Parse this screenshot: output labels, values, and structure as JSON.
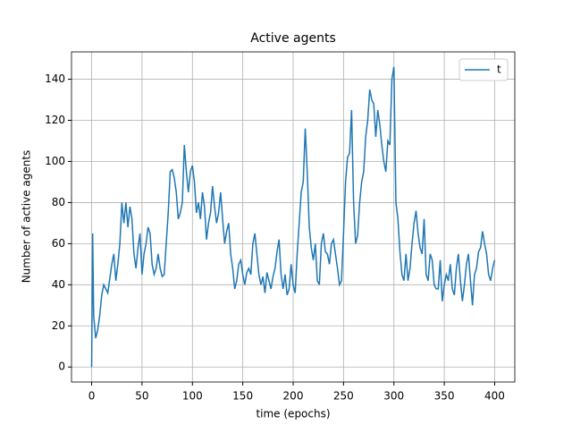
{
  "chart_data": {
    "type": "line",
    "title": "Active agents",
    "x_label": "time (epochs)",
    "y_label": "Number of active agents",
    "x": [
      0,
      1,
      2,
      4,
      6,
      8,
      10,
      12,
      16,
      20,
      22,
      24,
      26,
      28,
      30,
      32,
      34,
      36,
      38,
      40,
      42,
      44,
      46,
      48,
      50,
      52,
      54,
      56,
      58,
      60,
      62,
      64,
      66,
      68,
      70,
      72,
      74,
      76,
      78,
      80,
      82,
      84,
      86,
      88,
      90,
      92,
      94,
      96,
      98,
      100,
      102,
      104,
      106,
      108,
      110,
      112,
      114,
      116,
      118,
      120,
      122,
      124,
      126,
      128,
      130,
      132,
      134,
      136,
      138,
      140,
      142,
      144,
      146,
      148,
      150,
      152,
      154,
      156,
      158,
      160,
      162,
      164,
      166,
      168,
      170,
      172,
      174,
      176,
      178,
      180,
      182,
      184,
      186,
      188,
      190,
      192,
      194,
      196,
      198,
      200,
      202,
      204,
      206,
      208,
      210,
      212,
      214,
      216,
      218,
      220,
      222,
      224,
      226,
      228,
      230,
      232,
      234,
      236,
      238,
      240,
      242,
      244,
      246,
      248,
      250,
      252,
      254,
      256,
      258,
      260,
      262,
      264,
      266,
      268,
      270,
      272,
      274,
      276,
      278,
      280,
      282,
      284,
      286,
      288,
      290,
      292,
      294,
      296,
      298,
      300,
      302,
      304,
      306,
      308,
      310,
      312,
      314,
      316,
      318,
      320,
      322,
      324,
      326,
      328,
      330,
      332,
      334,
      336,
      338,
      340,
      342,
      344,
      346,
      348,
      350,
      352,
      354,
      356,
      358,
      360,
      362,
      364,
      366,
      368,
      370,
      372,
      374,
      376,
      378,
      380,
      382,
      384,
      386,
      388,
      390,
      392,
      394,
      396,
      398,
      400
    ],
    "series": [
      {
        "name": "t",
        "color": "#1f77b4",
        "values": [
          0,
          65,
          25,
          14,
          18,
          25,
          35,
          40,
          36,
          50,
          55,
          42,
          50,
          60,
          80,
          70,
          80,
          68,
          78,
          72,
          55,
          48,
          58,
          65,
          45,
          55,
          60,
          68,
          65,
          50,
          45,
          48,
          55,
          48,
          44,
          45,
          60,
          75,
          95,
          96,
          92,
          85,
          72,
          75,
          80,
          108,
          95,
          85,
          95,
          98,
          90,
          75,
          80,
          72,
          85,
          78,
          62,
          70,
          75,
          88,
          78,
          70,
          75,
          85,
          72,
          60,
          66,
          70,
          55,
          48,
          38,
          42,
          50,
          52,
          45,
          40,
          46,
          48,
          45,
          60,
          65,
          55,
          45,
          40,
          44,
          36,
          46,
          42,
          38,
          44,
          48,
          56,
          62,
          45,
          38,
          45,
          35,
          38,
          50,
          40,
          36,
          55,
          70,
          85,
          90,
          116,
          95,
          68,
          58,
          52,
          60,
          42,
          40,
          60,
          65,
          56,
          55,
          50,
          60,
          62,
          55,
          48,
          40,
          42,
          65,
          90,
          102,
          104,
          125,
          80,
          60,
          64,
          80,
          90,
          95,
          112,
          120,
          135,
          130,
          128,
          112,
          125,
          118,
          108,
          100,
          95,
          110,
          108,
          140,
          146,
          80,
          72,
          56,
          45,
          42,
          55,
          42,
          48,
          60,
          70,
          76,
          65,
          58,
          55,
          72,
          45,
          42,
          55,
          52,
          40,
          38,
          38,
          52,
          32,
          40,
          45,
          42,
          50,
          38,
          35,
          48,
          55,
          42,
          32,
          40,
          50,
          55,
          42,
          30,
          45,
          48,
          56,
          58,
          66,
          60,
          55,
          45,
          42,
          48,
          52
        ]
      }
    ],
    "xlim": [
      -20,
      420
    ],
    "ylim": [
      -7.3,
      153.3
    ],
    "xticks": [
      0,
      50,
      100,
      150,
      200,
      250,
      300,
      350,
      400
    ],
    "yticks": [
      0,
      20,
      40,
      60,
      80,
      100,
      120,
      140
    ],
    "grid": true,
    "legend": "upper right"
  }
}
